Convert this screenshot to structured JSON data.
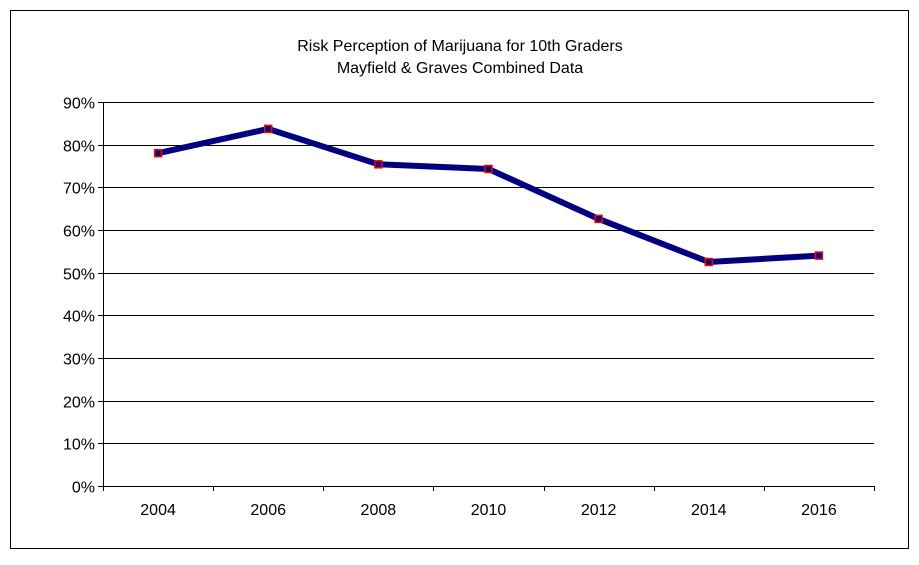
{
  "chart_data": {
    "type": "line",
    "title": [
      "Risk Perception of Marijuana for 10th Graders",
      "Mayfield & Graves Combined Data"
    ],
    "xlabel": "",
    "ylabel": "",
    "x": [
      "2004",
      "2006",
      "2008",
      "2010",
      "2012",
      "2014",
      "2016"
    ],
    "series": [
      {
        "name": "",
        "values": [
          78.0,
          83.7,
          75.4,
          74.3,
          62.6,
          52.5,
          54.0
        ]
      }
    ],
    "ylim": [
      0,
      90
    ],
    "yticks": [
      0,
      10,
      20,
      30,
      40,
      50,
      60,
      70,
      80,
      90
    ],
    "ytick_labels": [
      "0%",
      "10%",
      "20%",
      "30%",
      "40%",
      "50%",
      "60%",
      "70%",
      "80%",
      "90%"
    ],
    "grid": true,
    "legend": "none",
    "colors": {
      "line": "#000080",
      "marker_edge": "#ff0000",
      "marker_fill": "#000080",
      "grid": "#000000",
      "border": "#000000"
    }
  }
}
